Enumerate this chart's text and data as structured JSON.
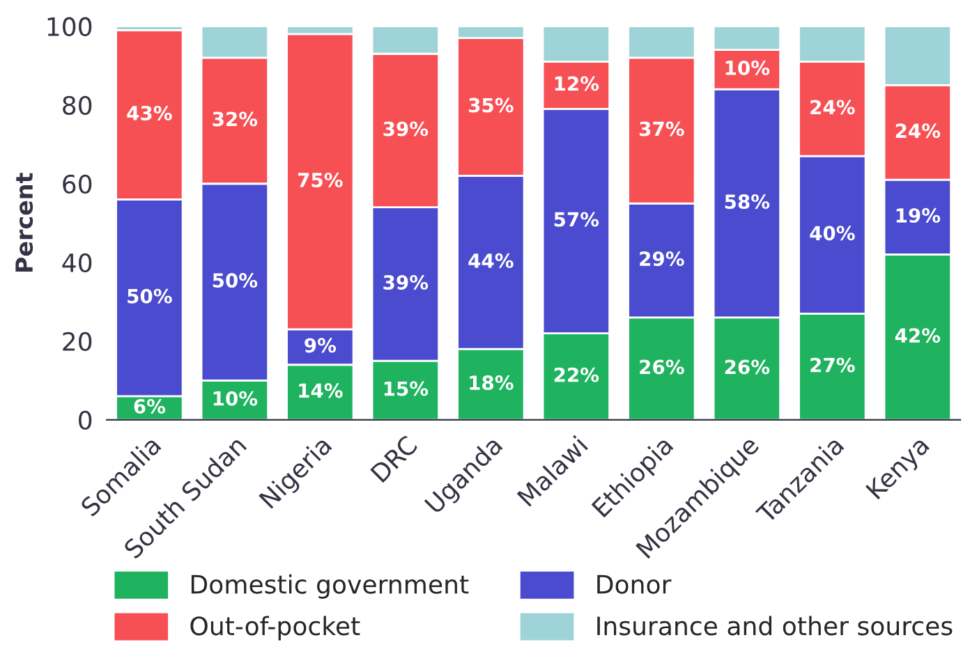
{
  "chart_data": {
    "type": "bar",
    "stacked": true,
    "ylabel": "Percent",
    "categories": [
      "Somalia",
      "South Sudan",
      "Nigeria",
      "DRC",
      "Uganda",
      "Malawi",
      "Ethiopia",
      "Mozambique",
      "Tanzania",
      "Kenya"
    ],
    "series": [
      {
        "name": "Domestic government",
        "color": "#1fb25f",
        "values": [
          6,
          10,
          14,
          15,
          18,
          22,
          26,
          26,
          27,
          42
        ],
        "value_labels": [
          "6%",
          "10%",
          "14%",
          "15%",
          "18%",
          "22%",
          "26%",
          "26%",
          "27%",
          "42%"
        ]
      },
      {
        "name": "Donor",
        "color": "#4b4bcf",
        "values": [
          50,
          50,
          9,
          39,
          44,
          57,
          29,
          58,
          40,
          19
        ],
        "value_labels": [
          "50%",
          "50%",
          "9%",
          "39%",
          "44%",
          "57%",
          "29%",
          "58%",
          "40%",
          "19%"
        ]
      },
      {
        "name": "Out-of-pocket",
        "color": "#f65055",
        "values": [
          43,
          32,
          75,
          39,
          35,
          12,
          37,
          10,
          24,
          24
        ],
        "value_labels": [
          "43%",
          "32%",
          "75%",
          "39%",
          "35%",
          "12%",
          "37%",
          "10%",
          "24%",
          "24%"
        ]
      },
      {
        "name": "Insurance and other sources",
        "color": "#9ed4d8",
        "values": [
          1,
          8,
          2,
          7,
          3,
          9,
          8,
          6,
          9,
          15
        ]
      }
    ],
    "ylim": [
      0,
      100
    ],
    "yticks": [
      0,
      20,
      40,
      60,
      80,
      100
    ],
    "legend": "bottom",
    "grid": false
  }
}
